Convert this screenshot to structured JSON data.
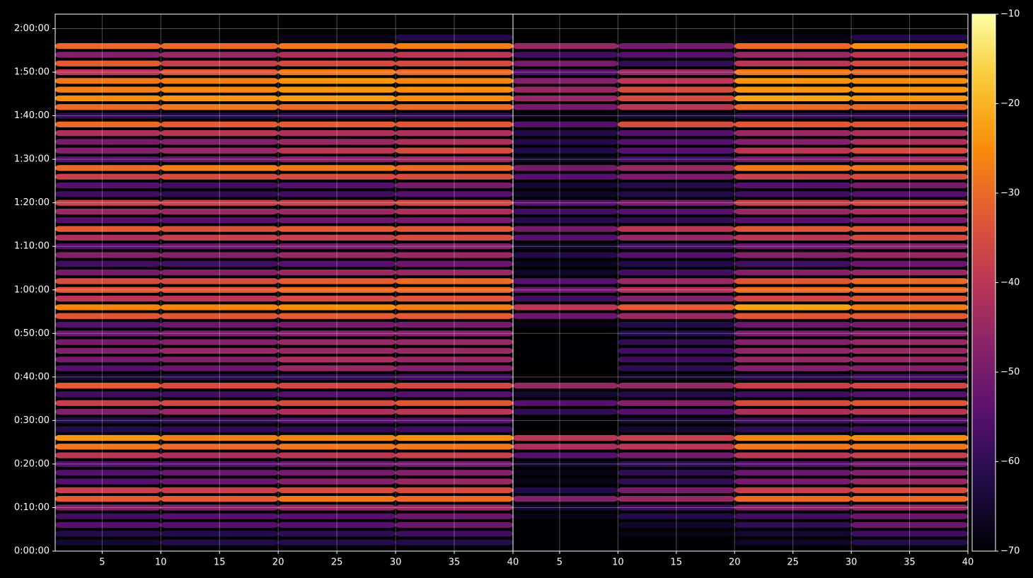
{
  "chart_data": {
    "type": "heatmap",
    "colormap": "inferno",
    "clim": [
      -70,
      -10
    ],
    "cticks": [
      {
        "value": -10,
        "label": "−10"
      },
      {
        "value": -20,
        "label": "−20"
      },
      {
        "value": -30,
        "label": "−30"
      },
      {
        "value": -40,
        "label": "−40"
      },
      {
        "value": -50,
        "label": "−50"
      },
      {
        "value": -60,
        "label": "−60"
      },
      {
        "value": -70,
        "label": "−70"
      }
    ],
    "xlim": [
      1,
      40
    ],
    "xticks": [
      5,
      10,
      15,
      20,
      25,
      30,
      35,
      40
    ],
    "ylim": [
      0,
      7400
    ],
    "yticks": [
      {
        "value": 0,
        "label": "0:00:00"
      },
      {
        "value": 600,
        "label": "0:10:00"
      },
      {
        "value": 1200,
        "label": "0:20:00"
      },
      {
        "value": 1800,
        "label": "0:30:00"
      },
      {
        "value": 2400,
        "label": "0:40:00"
      },
      {
        "value": 3000,
        "label": "0:50:00"
      },
      {
        "value": 3600,
        "label": "1:00:00"
      },
      {
        "value": 4200,
        "label": "1:10:00"
      },
      {
        "value": 4800,
        "label": "1:20:00"
      },
      {
        "value": 5400,
        "label": "1:30:00"
      },
      {
        "value": 6000,
        "label": "1:40:00"
      },
      {
        "value": 6600,
        "label": "1:50:00"
      },
      {
        "value": 7200,
        "label": "2:00:00"
      }
    ],
    "grid": true,
    "x_bins": [
      1,
      10,
      20,
      30,
      40
    ],
    "y": [
      0,
      120,
      240,
      360,
      480,
      600,
      720,
      840,
      960,
      1080,
      1200,
      1320,
      1440,
      1560,
      1680,
      1800,
      1920,
      2040,
      2160,
      2280,
      2400,
      2520,
      2640,
      2760,
      2880,
      3000,
      3120,
      3240,
      3360,
      3480,
      3600,
      3720,
      3840,
      3960,
      4080,
      4200,
      4320,
      4440,
      4560,
      4680,
      4800,
      4920,
      5040,
      5160,
      5280,
      5400,
      5520,
      5640,
      5760,
      5880,
      6000,
      6120,
      6240,
      6360,
      6480,
      6600,
      6720,
      6840,
      6960,
      7080
    ],
    "panels": [
      {
        "values": [
          [
            -70,
            -70,
            -70,
            -70
          ],
          [
            -65,
            -62,
            -62,
            -62
          ],
          [
            -62,
            -62,
            -60,
            -58
          ],
          [
            -55,
            -55,
            -55,
            -52
          ],
          [
            -58,
            -55,
            -55,
            -52
          ],
          [
            -48,
            -48,
            -45,
            -45
          ],
          [
            -32,
            -32,
            -28,
            -30
          ],
          [
            -38,
            -38,
            -35,
            -35
          ],
          [
            -55,
            -52,
            -48,
            -45
          ],
          [
            -55,
            -52,
            -50,
            -48
          ],
          [
            -55,
            -55,
            -52,
            -50
          ],
          [
            -40,
            -42,
            -40,
            -38
          ],
          [
            -28,
            -30,
            -28,
            -28
          ],
          [
            -24,
            -27,
            -26,
            -25
          ],
          [
            -62,
            -60,
            -60,
            -58
          ],
          [
            -62,
            -60,
            -55,
            -55
          ],
          [
            -48,
            -45,
            -42,
            -40
          ],
          [
            -38,
            -36,
            -35,
            -33
          ],
          [
            -58,
            -58,
            -55,
            -55
          ],
          [
            -32,
            -35,
            -36,
            -36
          ],
          [
            -65,
            -62,
            -60,
            -58
          ],
          [
            -55,
            -52,
            -45,
            -48
          ],
          [
            -50,
            -48,
            -42,
            -45
          ],
          [
            -48,
            -45,
            -45,
            -45
          ],
          [
            -50,
            -48,
            -45,
            -45
          ],
          [
            -52,
            -50,
            -48,
            -48
          ],
          [
            -55,
            -52,
            -50,
            -50
          ],
          [
            -33,
            -33,
            -32,
            -32
          ],
          [
            -26,
            -26,
            -25,
            -27
          ],
          [
            -40,
            -40,
            -35,
            -33
          ],
          [
            -33,
            -33,
            -30,
            -30
          ],
          [
            -35,
            -35,
            -32,
            -30
          ],
          [
            -50,
            -48,
            -45,
            -45
          ],
          [
            -58,
            -58,
            -55,
            -52
          ],
          [
            -48,
            -48,
            -45,
            -45
          ],
          [
            -55,
            -52,
            -50,
            -48
          ],
          [
            -42,
            -38,
            -38,
            -35
          ],
          [
            -32,
            -34,
            -32,
            -33
          ],
          [
            -55,
            -55,
            -52,
            -50
          ],
          [
            -45,
            -45,
            -45,
            -42
          ],
          [
            -38,
            -38,
            -38,
            -36
          ],
          [
            -58,
            -60,
            -58,
            -55
          ],
          [
            -55,
            -58,
            -55,
            -50
          ],
          [
            -38,
            -35,
            -35,
            -35
          ],
          [
            -30,
            -27,
            -28,
            -30
          ],
          [
            -55,
            -52,
            -48,
            -45
          ],
          [
            -48,
            -45,
            -40,
            -35
          ],
          [
            -50,
            -48,
            -45,
            -42
          ],
          [
            -42,
            -40,
            -42,
            -42
          ],
          [
            -30,
            -32,
            -32,
            -33
          ],
          [
            -60,
            -62,
            -60,
            -60
          ],
          [
            -30,
            -28,
            -30,
            -30
          ],
          [
            -25,
            -24,
            -23,
            -25
          ],
          [
            -27,
            -26,
            -24,
            -25
          ],
          [
            -28,
            -27,
            -24,
            -26
          ],
          [
            -40,
            -33,
            -28,
            -30
          ],
          [
            -32,
            -38,
            -35,
            -35
          ],
          [
            -48,
            -45,
            -42,
            -40
          ],
          [
            -30,
            -30,
            -28,
            -27
          ],
          [
            -70,
            -70,
            -68,
            -62
          ]
        ]
      },
      {
        "values": [
          [
            -70,
            -70,
            -70,
            -70
          ],
          [
            -70,
            -70,
            -66,
            -62
          ],
          [
            -70,
            -68,
            -65,
            -58
          ],
          [
            -70,
            -66,
            -60,
            -52
          ],
          [
            -68,
            -62,
            -58,
            -52
          ],
          [
            -65,
            -58,
            -48,
            -45
          ],
          [
            -48,
            -45,
            -30,
            -30
          ],
          [
            -62,
            -50,
            -38,
            -35
          ],
          [
            -68,
            -60,
            -50,
            -45
          ],
          [
            -68,
            -60,
            -52,
            -48
          ],
          [
            -66,
            -60,
            -55,
            -50
          ],
          [
            -55,
            -50,
            -40,
            -38
          ],
          [
            -42,
            -40,
            -28,
            -28
          ],
          [
            -40,
            -38,
            -26,
            -25
          ],
          [
            -70,
            -65,
            -60,
            -58
          ],
          [
            -70,
            -65,
            -58,
            -55
          ],
          [
            -60,
            -55,
            -42,
            -40
          ],
          [
            -55,
            -48,
            -35,
            -33
          ],
          [
            -65,
            -62,
            -58,
            -55
          ],
          [
            -45,
            -45,
            -38,
            -36
          ],
          [
            -70,
            -66,
            -62,
            -58
          ],
          [
            -70,
            -60,
            -48,
            -48
          ],
          [
            -70,
            -58,
            -45,
            -45
          ],
          [
            -70,
            -58,
            -46,
            -45
          ],
          [
            -70,
            -60,
            -48,
            -45
          ],
          [
            -70,
            -62,
            -50,
            -48
          ],
          [
            -68,
            -62,
            -52,
            -50
          ],
          [
            -52,
            -45,
            -33,
            -32
          ],
          [
            -40,
            -32,
            -22,
            -27
          ],
          [
            -58,
            -48,
            -36,
            -33
          ],
          [
            -52,
            -42,
            -30,
            -30
          ],
          [
            -55,
            -45,
            -33,
            -30
          ],
          [
            -66,
            -58,
            -48,
            -45
          ],
          [
            -67,
            -62,
            -58,
            -52
          ],
          [
            -62,
            -55,
            -48,
            -45
          ],
          [
            -66,
            -58,
            -52,
            -48
          ],
          [
            -55,
            -45,
            -40,
            -35
          ],
          [
            -50,
            -40,
            -33,
            -33
          ],
          [
            -62,
            -60,
            -55,
            -50
          ],
          [
            -58,
            -55,
            -45,
            -42
          ],
          [
            -55,
            -50,
            -38,
            -36
          ],
          [
            -66,
            -62,
            -58,
            -55
          ],
          [
            -65,
            -62,
            -55,
            -50
          ],
          [
            -55,
            -50,
            -38,
            -35
          ],
          [
            -50,
            -45,
            -28,
            -28
          ],
          [
            -66,
            -58,
            -50,
            -45
          ],
          [
            -62,
            -55,
            -40,
            -35
          ],
          [
            -62,
            -55,
            -48,
            -42
          ],
          [
            -62,
            -55,
            -45,
            -42
          ],
          [
            -55,
            -35,
            -33,
            -33
          ],
          [
            -68,
            -65,
            -60,
            -60
          ],
          [
            -50,
            -40,
            -30,
            -30
          ],
          [
            -45,
            -35,
            -22,
            -24
          ],
          [
            -45,
            -35,
            -24,
            -24
          ],
          [
            -48,
            -40,
            -24,
            -25
          ],
          [
            -55,
            -45,
            -28,
            -30
          ],
          [
            -50,
            -60,
            -40,
            -35
          ],
          [
            -58,
            -55,
            -45,
            -40
          ],
          [
            -45,
            -50,
            -30,
            -25
          ],
          [
            -70,
            -70,
            -68,
            -62
          ]
        ]
      }
    ]
  }
}
